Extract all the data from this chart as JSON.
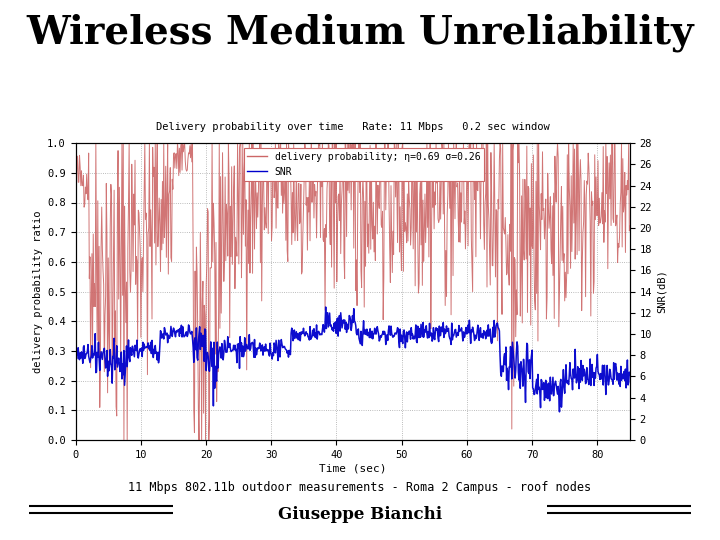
{
  "title": "Wireless Medium Unreliability",
  "subtitle": "Delivery probability over time   Rate: 11 Mbps   0.2 sec window",
  "xlabel": "Time (sec)",
  "ylabel_left": "delivery probability ratio",
  "ylabel_right": "SNR(dB)",
  "legend_line1": "delivery probability; η=0.69 σ=0.26",
  "legend_line2": "SNR",
  "footnote": "11 Mbps 802.11b outdoor measurements - Roma 2 Campus - roof nodes",
  "author": "Giuseppe Bianchi",
  "xlim": [
    0,
    85
  ],
  "ylim_left": [
    0,
    1.0
  ],
  "ylim_right": [
    0,
    28
  ],
  "yticks_left": [
    0,
    0.1,
    0.2,
    0.3,
    0.4,
    0.5,
    0.6,
    0.7,
    0.8,
    0.9,
    1
  ],
  "yticks_right": [
    0,
    2,
    4,
    6,
    8,
    10,
    12,
    14,
    16,
    18,
    20,
    22,
    24,
    26,
    28
  ],
  "xticks": [
    0,
    10,
    20,
    30,
    40,
    50,
    60,
    70,
    80
  ],
  "color_red": "#cc6666",
  "color_blue": "#0000cc",
  "background_color": "#ffffff",
  "title_fontsize": 28,
  "seed": 42
}
